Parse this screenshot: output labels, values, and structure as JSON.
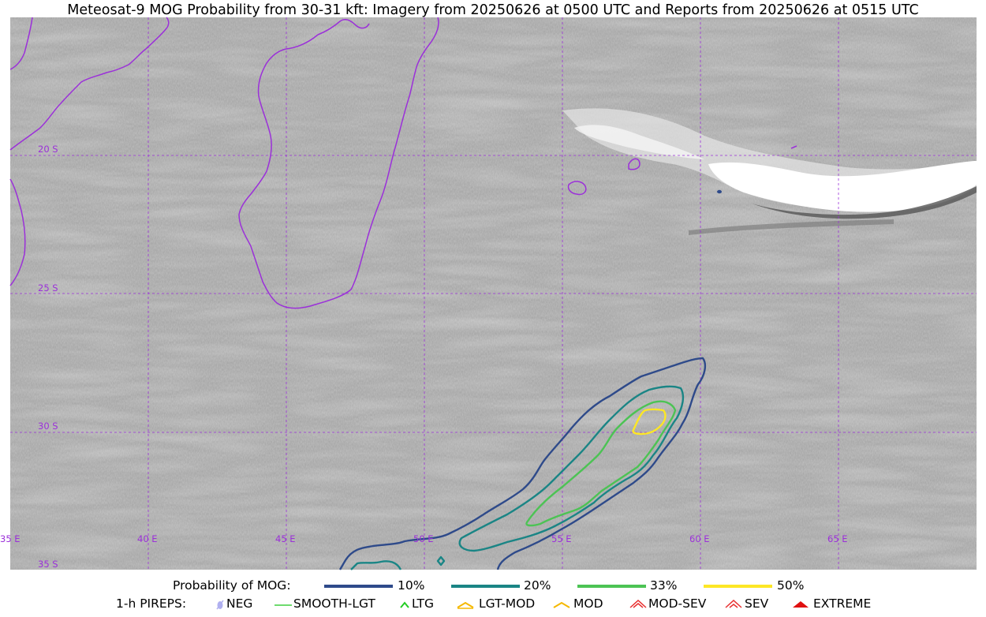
{
  "title": "Meteosat-9 MOG Probability from 30-31 kft: Imagery from 20250626 at 0500 UTC and Reports from 20250626 at 0515 UTC",
  "map": {
    "lon_labels": [
      "35 E",
      "40 E",
      "45 E",
      "50 E",
      "55 E",
      "60 E",
      "65 E"
    ],
    "lat_labels": [
      "20 S",
      "25 S",
      "30 S",
      "35 S"
    ],
    "gridline_color": "#9b30d9",
    "coastline_color": "#9b30d9"
  },
  "probability_legend": {
    "label": "Probability of MOG:",
    "levels": [
      {
        "label": "10%",
        "color": "#2e4a8a"
      },
      {
        "label": "20%",
        "color": "#1a8585"
      },
      {
        "label": "33%",
        "color": "#4cc354"
      },
      {
        "label": "50%",
        "color": "#fde725"
      }
    ]
  },
  "pirep_legend": {
    "label": "1-h PIREPS:",
    "items": [
      {
        "label": "NEG",
        "icon": "neg-icon",
        "color": "#b0b0f0"
      },
      {
        "label": "SMOOTH-LGT",
        "icon": "smooth-lgt-line-icon",
        "color": "#3ecf3e"
      },
      {
        "label": "LTG",
        "icon": "ltg-caret-icon",
        "color": "#22cc22"
      },
      {
        "label": "LGT-MOD",
        "icon": "lgt-mod-icon",
        "color": "#f5b800"
      },
      {
        "label": "MOD",
        "icon": "mod-icon",
        "color": "#f5b800"
      },
      {
        "label": "MOD-SEV",
        "icon": "mod-sev-icon",
        "color": "#e83030"
      },
      {
        "label": "SEV",
        "icon": "sev-icon",
        "color": "#e83030"
      },
      {
        "label": "EXTREME",
        "icon": "extreme-icon",
        "color": "#e01010"
      }
    ]
  }
}
